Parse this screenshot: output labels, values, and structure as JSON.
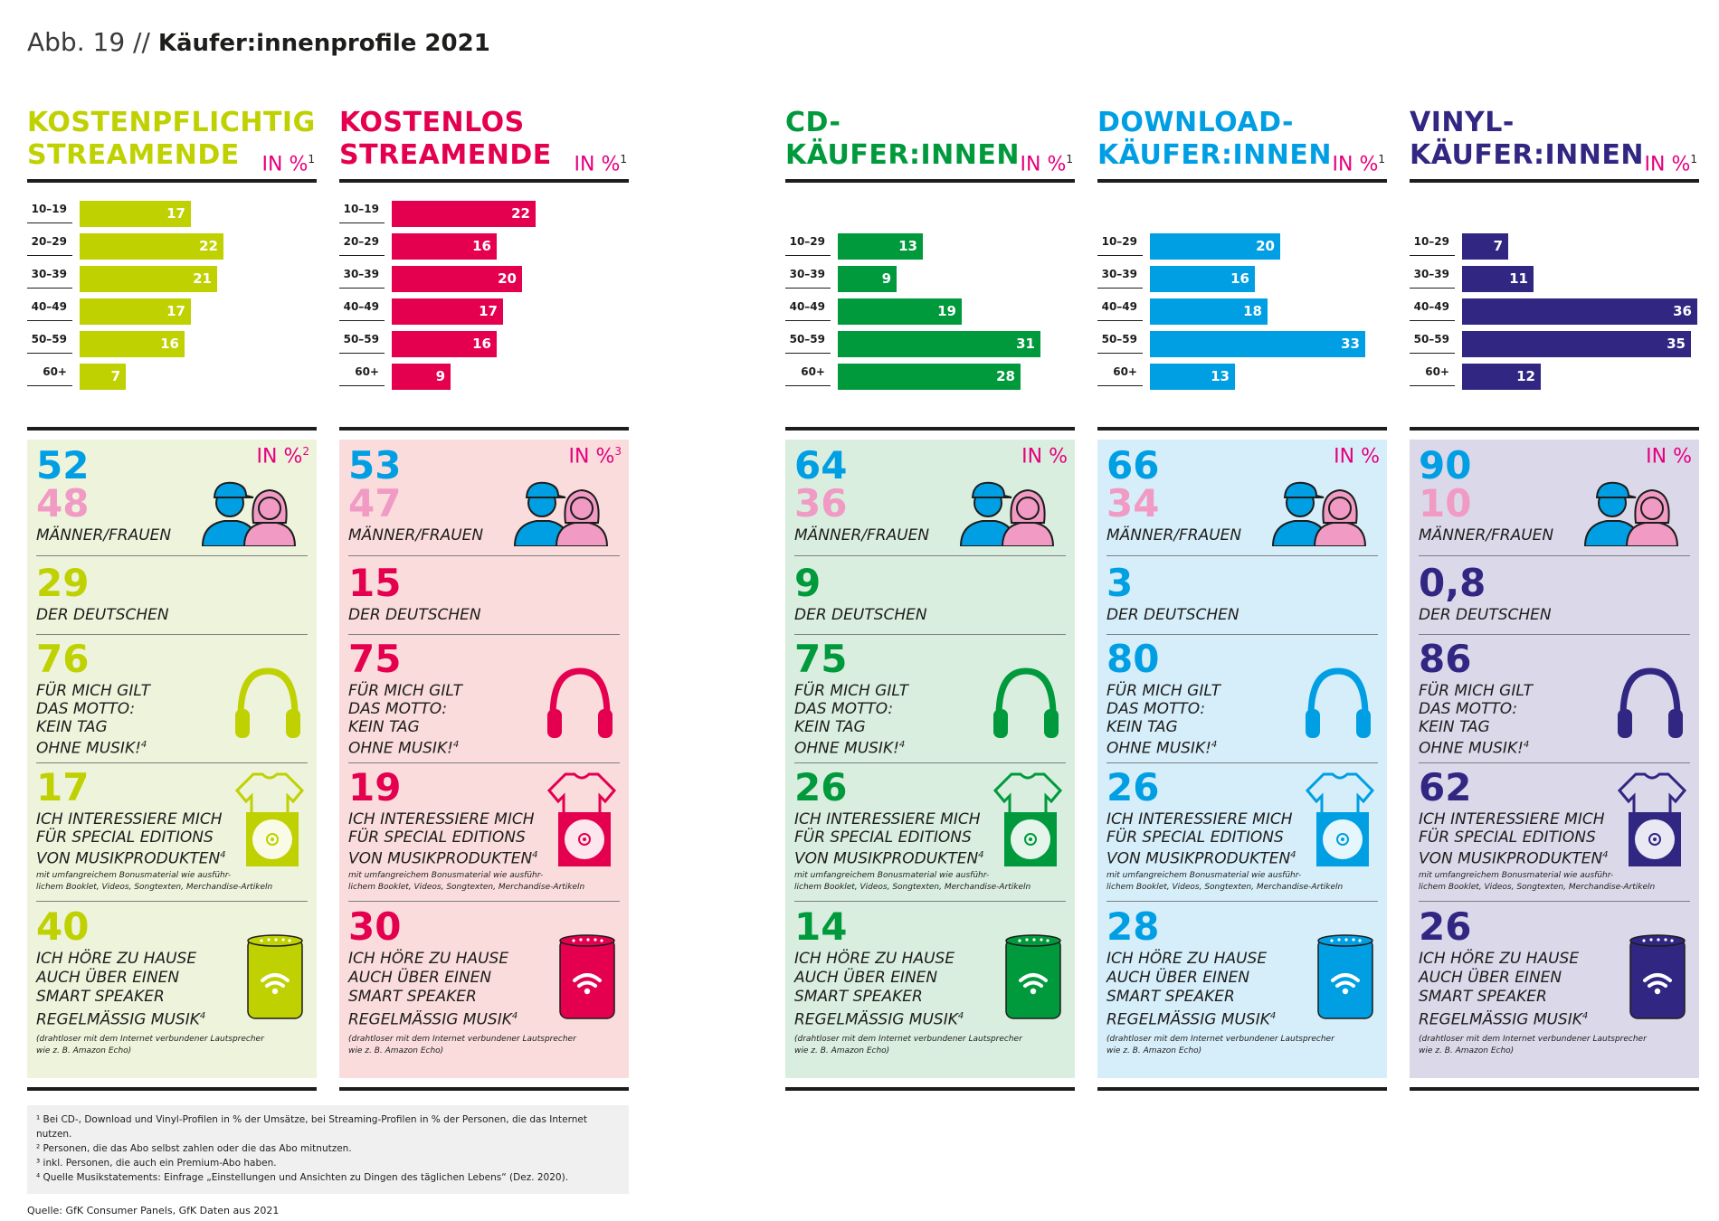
{
  "header": {
    "abb": "Abb. 19 //",
    "title": "Käufer:innenprofile 2021"
  },
  "chart_data": [
    {
      "type": "bar",
      "title": "KOSTENPFLICHTIG STREAMENDE",
      "unit": "IN %",
      "unit_note": "1",
      "color": "#bfd100",
      "light": "#eef3dc",
      "categories": [
        "10–19",
        "20–29",
        "30–39",
        "40–49",
        "50–59",
        "60+"
      ],
      "values": [
        17,
        22,
        21,
        17,
        16,
        7
      ]
    },
    {
      "type": "bar",
      "title": "KOSTENLOS STREAMENDE",
      "unit": "IN %",
      "unit_note": "1",
      "color": "#e4004f",
      "light": "#fadcdc",
      "categories": [
        "10–19",
        "20–29",
        "30–39",
        "40–49",
        "50–59",
        "60+"
      ],
      "values": [
        22,
        16,
        20,
        17,
        16,
        9
      ]
    },
    {
      "type": "bar",
      "title": "CD-\nKÄUFER:INNEN",
      "unit": "IN %",
      "unit_note": "1",
      "color": "#009a3d",
      "light": "#d9eedf",
      "categories": [
        "10–29",
        "30–39",
        "40–49",
        "50–59",
        "60+"
      ],
      "values": [
        13,
        9,
        19,
        31,
        28
      ]
    },
    {
      "type": "bar",
      "title": "DOWNLOAD-\nKÄUFER:INNEN",
      "unit": "IN %",
      "unit_note": "1",
      "color": "#009fe3",
      "light": "#d6eefa",
      "categories": [
        "10–29",
        "30–39",
        "40–49",
        "50–59",
        "60+"
      ],
      "values": [
        20,
        16,
        18,
        33,
        13
      ]
    },
    {
      "type": "bar",
      "title": "VINYL-\nKÄUFER:INNEN",
      "unit": "IN %",
      "unit_note": "1",
      "color": "#312783",
      "light": "#dbd8ea",
      "categories": [
        "10–29",
        "30–39",
        "40–49",
        "50–59",
        "60+"
      ],
      "values": [
        7,
        11,
        36,
        35,
        12
      ]
    }
  ],
  "profiles": [
    {
      "unit": "IN %",
      "unit_note": "2",
      "men": "52",
      "women": "48",
      "germans": "29",
      "motto": "76",
      "special": "17",
      "speaker": "40"
    },
    {
      "unit": "IN %",
      "unit_note": "3",
      "men": "53",
      "women": "47",
      "germans": "15",
      "motto": "75",
      "special": "19",
      "speaker": "30"
    },
    {
      "unit": "IN %",
      "unit_note": "",
      "men": "64",
      "women": "36",
      "germans": "9",
      "motto": "75",
      "special": "26",
      "speaker": "14"
    },
    {
      "unit": "IN %",
      "unit_note": "",
      "men": "66",
      "women": "34",
      "germans": "3",
      "motto": "80",
      "special": "26",
      "speaker": "28"
    },
    {
      "unit": "IN %",
      "unit_note": "",
      "men": "90",
      "women": "10",
      "germans": "0,8",
      "motto": "86",
      "special": "62",
      "speaker": "26"
    }
  ],
  "labels": {
    "gender": "MÄNNER/FRAUEN",
    "germans": "DER DEUTSCHEN",
    "motto": "FÜR MICH GILT\nDAS MOTTO:\nKEIN TAG\nOHNE MUSIK!",
    "motto_note": "4",
    "special": "ICH INTERESSIERE MICH\nFÜR SPECIAL EDITIONS\nVON MUSIKPRODUKTEN",
    "special_note": "4",
    "special_small": "mit umfangreichem Bonusmaterial wie ausführ-\nlichem Booklet, Videos, Songtexten, Merchandise-Artikeln",
    "speaker": "ICH HÖRE ZU HAUSE\nAUCH ÜBER EINEN\nSMART SPEAKER\nREGELMÄSSIG MUSIK",
    "speaker_note": "4",
    "speaker_small": "(drahtloser mit dem Internet verbundener Lautsprecher\nwie z. B. Amazon Echo)"
  },
  "colors": {
    "men": "#009fe3",
    "women": "#f09ac4",
    "unit": "#e6007e"
  },
  "footnotes": [
    "¹ Bei CD-, Download und Vinyl-Profilen in % der Umsätze, bei Streaming-Profilen in % der Personen, die das Internet nutzen.",
    "² Personen, die das Abo selbst zahlen oder die das Abo mitnutzen.",
    "³ inkl. Personen, die auch ein Premium-Abo haben.",
    "⁴ Quelle Musikstatements: Einfrage „Einstellungen und Ansichten zu Dingen des täglichen Lebens“ (Dez. 2020)."
  ],
  "source": "Quelle: GfK Consumer Panels, GfK Daten aus 2021"
}
